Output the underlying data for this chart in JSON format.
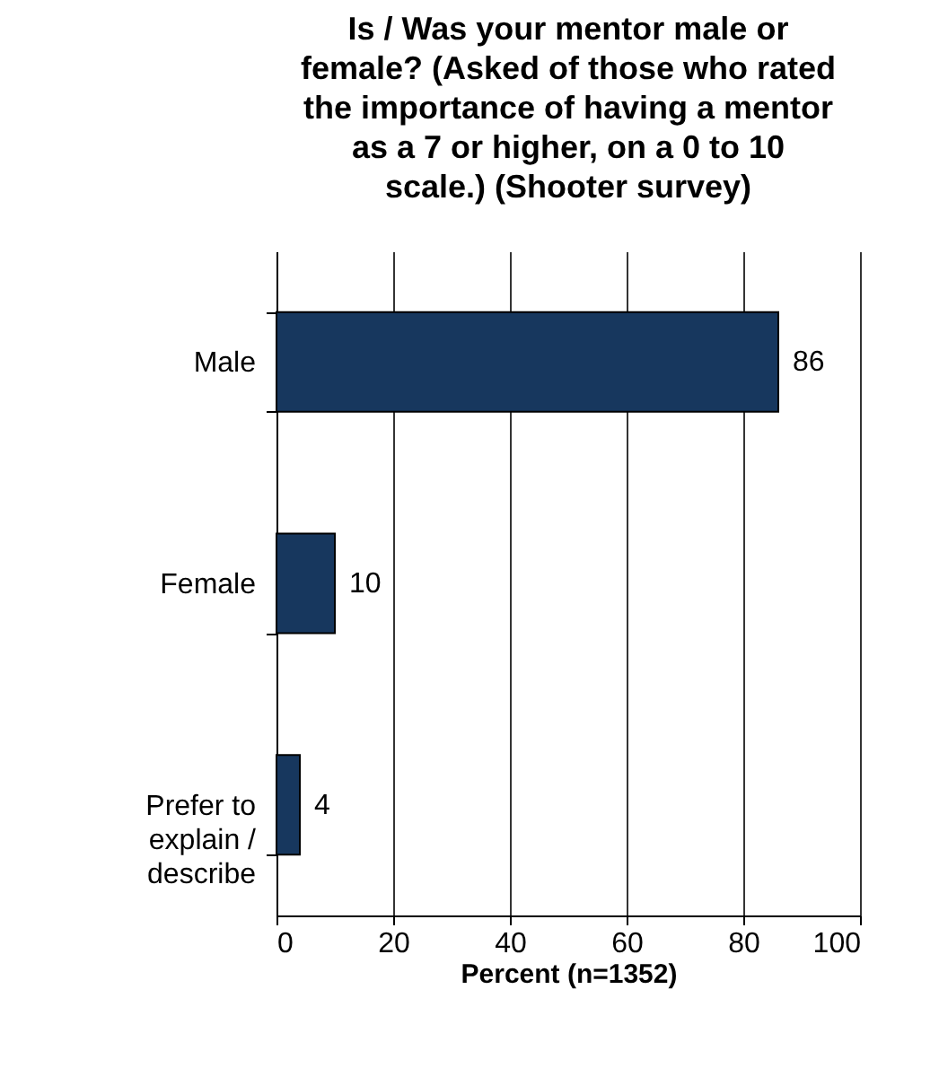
{
  "chart_data": {
    "type": "bar",
    "orientation": "horizontal",
    "title": "Is / Was your mentor male or female? (Asked of those who rated the importance of having a mentor as a 7 or higher, on a 0 to 10 scale.) (Shooter survey)",
    "xlabel": "Percent (n=1352)",
    "categories": [
      "Male",
      "Female",
      "Prefer to explain / describe"
    ],
    "values": [
      86,
      10,
      4
    ],
    "color": "#17375e",
    "xlim": [
      0,
      100
    ],
    "xticks": [
      0,
      20,
      40,
      60,
      80,
      100
    ],
    "grid": "x",
    "data_labels": true
  }
}
